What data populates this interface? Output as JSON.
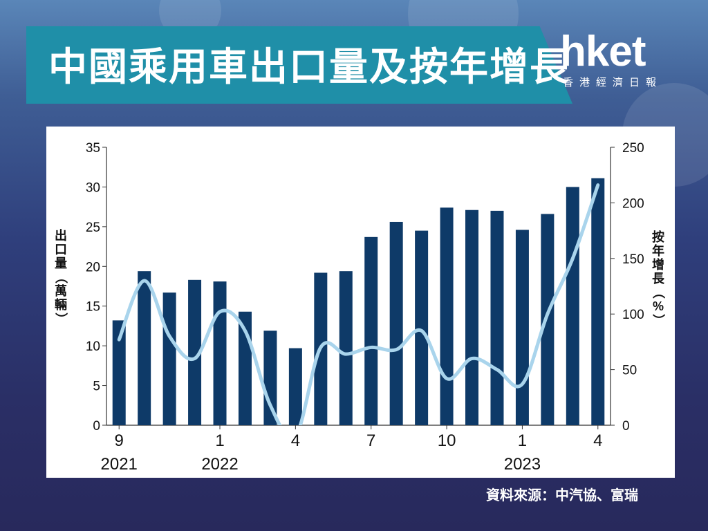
{
  "title": "中國乘用車出口量及按年增長",
  "logo": {
    "main": "hket",
    "sub": "香港經濟日報"
  },
  "source": "資料來源：中汽協、富瑞",
  "colors": {
    "bar": "#0e3a68",
    "line": "#a9d4ec",
    "banner": "#1f8fa8"
  },
  "chart_data": {
    "type": "bar",
    "categories": [
      "2021-09",
      "2021-10",
      "2021-11",
      "2021-12",
      "2022-01",
      "2022-02",
      "2022-03",
      "2022-04",
      "2022-05",
      "2022-06",
      "2022-07",
      "2022-08",
      "2022-09",
      "2022-10",
      "2022-11",
      "2022-12",
      "2023-01",
      "2023-02",
      "2023-03",
      "2023-04"
    ],
    "x_tick_labels": [
      "9",
      "",
      "",
      "",
      "1",
      "",
      "",
      "4",
      "",
      "",
      "7",
      "",
      "",
      "10",
      "",
      "",
      "1",
      "",
      "",
      "4"
    ],
    "x_year_labels": [
      {
        "index": 0,
        "label": "2021"
      },
      {
        "index": 4,
        "label": "2022"
      },
      {
        "index": 16,
        "label": "2023"
      }
    ],
    "series": [
      {
        "axis": "left",
        "type": "bar",
        "values": [
          13.2,
          19.4,
          16.7,
          18.3,
          18.1,
          14.3,
          11.9,
          9.7,
          19.2,
          19.4,
          23.7,
          25.6,
          24.5,
          27.4,
          27.1,
          27.0,
          24.6,
          26.6,
          30.0,
          31.1
        ]
      },
      {
        "axis": "right",
        "type": "line",
        "values": [
          77,
          130,
          80,
          60,
          102,
          85,
          18,
          -10,
          70,
          64,
          70,
          68,
          85,
          42,
          60,
          50,
          37,
          100,
          150,
          216
        ]
      }
    ],
    "ylabel": "出口量（萬輛）",
    "y2label": "按年增長（%）",
    "ylim": [
      0,
      35
    ],
    "y2lim": [
      0,
      250
    ],
    "yticks": [
      0,
      5,
      10,
      15,
      20,
      25,
      30,
      35
    ],
    "y2ticks": [
      0,
      50,
      100,
      150,
      200,
      250
    ],
    "grid": false
  }
}
